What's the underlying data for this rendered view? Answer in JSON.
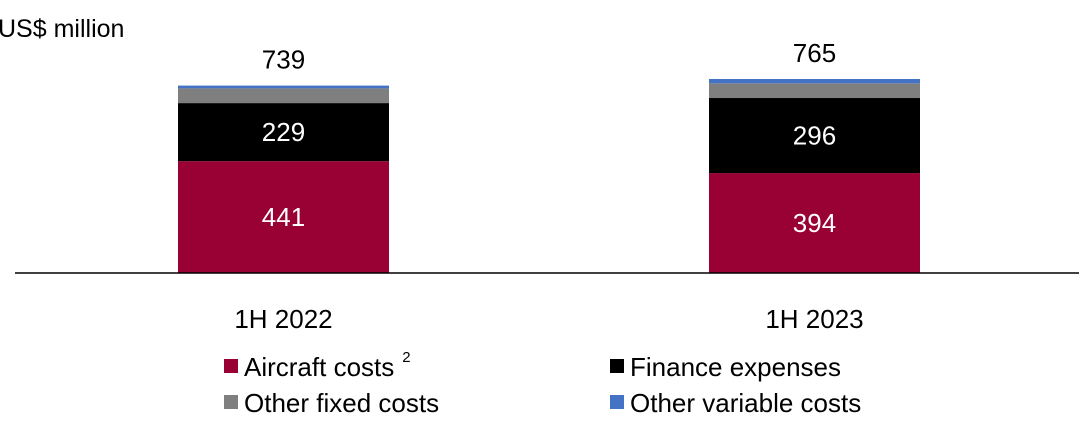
{
  "chart_data": {
    "type": "bar",
    "stacked": true,
    "unit_label": "US$ million",
    "categories": [
      "1H 2022",
      "1H 2023"
    ],
    "totals": [
      739,
      765
    ],
    "series": [
      {
        "name": "Aircraft costs",
        "superscript": "2",
        "color": "#990033",
        "values": [
          441,
          394
        ],
        "data_labels": [
          "441",
          "394"
        ]
      },
      {
        "name": "Finance expenses",
        "color": "#000000",
        "values": [
          229,
          296
        ],
        "data_labels": [
          "229",
          "296"
        ]
      },
      {
        "name": "Other fixed costs",
        "color": "#7f7f7f",
        "values": [
          58,
          58
        ]
      },
      {
        "name": "Other variable costs",
        "color": "#4472c4",
        "values": [
          11,
          17
        ]
      }
    ],
    "ylim": [
      0,
      765
    ],
    "grid": false,
    "legend_position": "bottom"
  }
}
